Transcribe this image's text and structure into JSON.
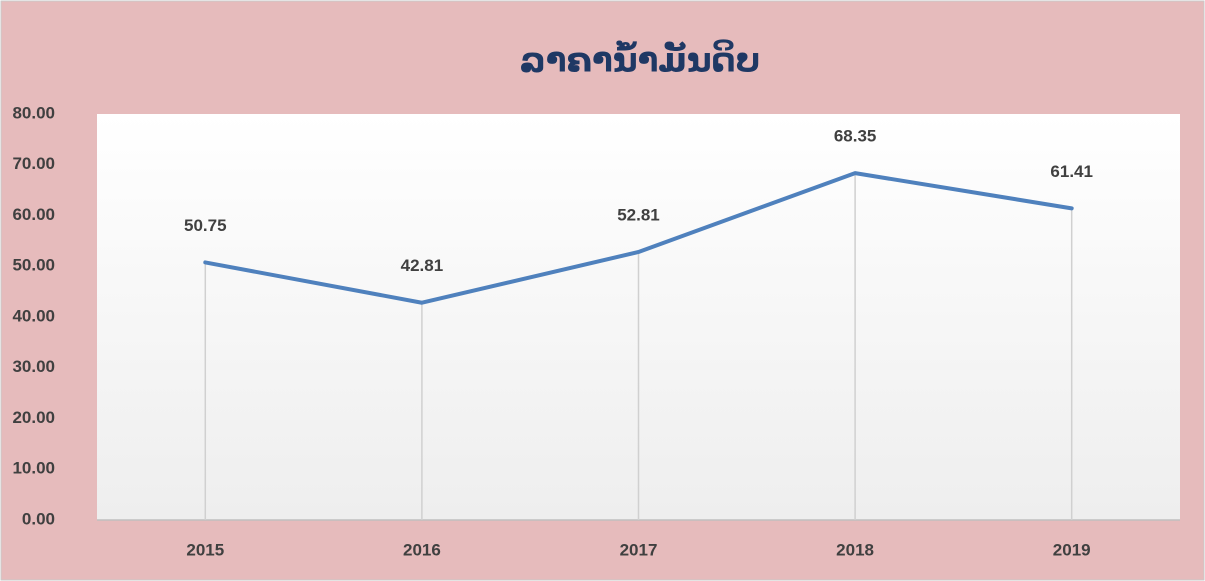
{
  "chart_data": {
    "type": "line",
    "title": "ລາຄານ້ຳມັນດິບ",
    "categories": [
      "2015",
      "2016",
      "2017",
      "2018",
      "2019"
    ],
    "series": [
      {
        "name": "ລາຄານ້ຳມັນດິບ",
        "color": "#4f81bd",
        "values": [
          50.75,
          42.81,
          52.81,
          68.35,
          61.41
        ]
      }
    ],
    "ylim": [
      0,
      80
    ],
    "yticks": [
      {
        "value": 0,
        "label": "0.00"
      },
      {
        "value": 10,
        "label": "10.00"
      },
      {
        "value": 20,
        "label": "20.00"
      },
      {
        "value": 30,
        "label": "30.00"
      },
      {
        "value": 40,
        "label": "40.00"
      },
      {
        "value": 50,
        "label": "50.00"
      },
      {
        "value": 60,
        "label": "60.00"
      },
      {
        "value": 70,
        "label": "70.00"
      },
      {
        "value": 80,
        "label": "80.00"
      }
    ],
    "drop_lines": true
  }
}
